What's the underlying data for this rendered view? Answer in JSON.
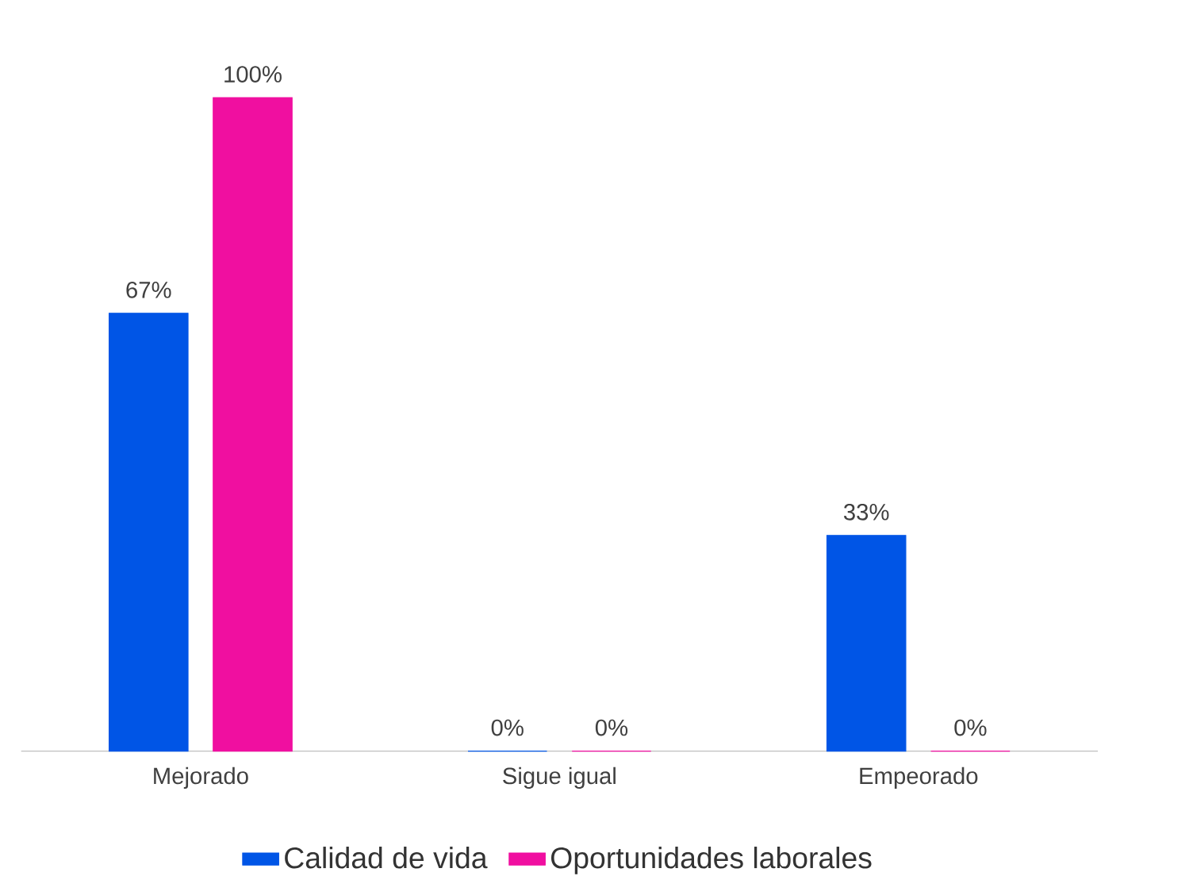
{
  "chart_data": {
    "type": "bar",
    "categories": [
      "Mejorado",
      "Sigue igual",
      "Empeorado"
    ],
    "series": [
      {
        "name": "Calidad de vida",
        "color": "#0055e6",
        "values": [
          67,
          0,
          33
        ],
        "value_labels": [
          "67%",
          "0%",
          "33%"
        ]
      },
      {
        "name": "Oportunidades laborales",
        "color": "#f00fa0",
        "values": [
          100,
          0,
          0
        ],
        "value_labels": [
          "100%",
          "0%",
          "0%"
        ]
      }
    ],
    "legend": "bottom"
  }
}
